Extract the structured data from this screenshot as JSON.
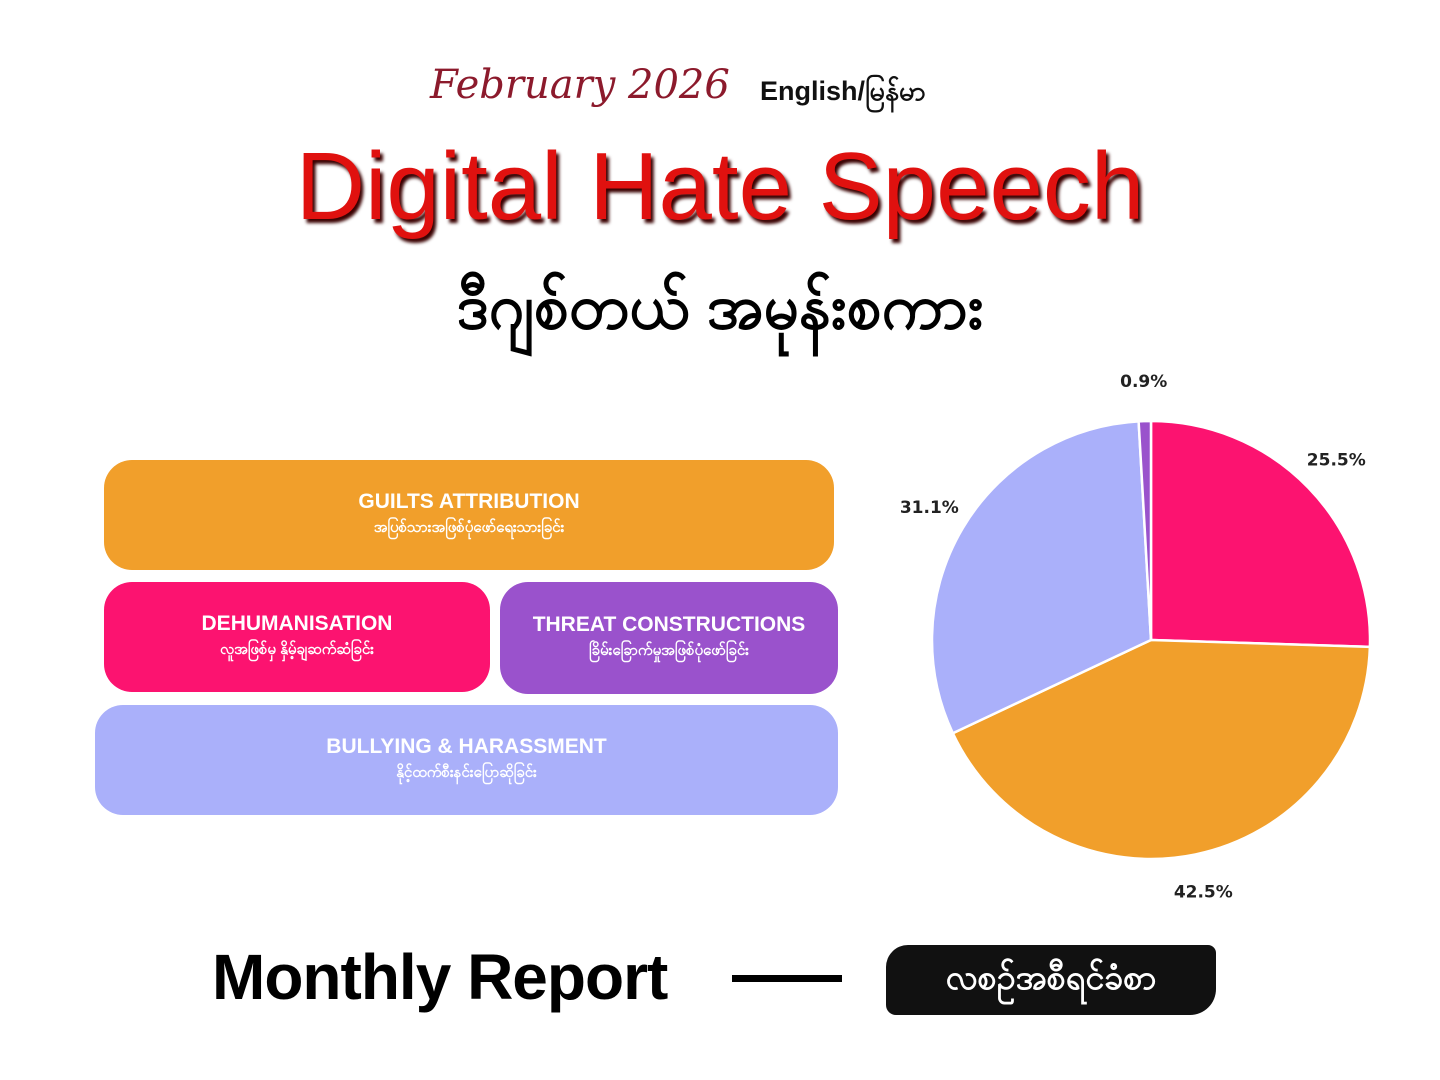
{
  "header": {
    "date": "February 2026",
    "language": "English/မြန်မာ",
    "title": "Digital Hate Speech",
    "subtitle": "ဒီဂျစ်တယ် အမုန်းစကား"
  },
  "chart_data": {
    "type": "pie",
    "categories": [
      "DEHUMANISATION",
      "GUILTS ATTRIBUTION",
      "BULLYING & HARASSMENT",
      "THREAT CONSTRUCTIONS"
    ],
    "category_subtitles": [
      "လူအဖြစ်မှ နှိမ့်ချဆက်ဆံခြင်း",
      "အပြစ်သားအဖြစ်ပုံဖော်ရေးသားခြင်း",
      "နိုင့်ထက်စီးနင်းပြောဆိုခြင်း",
      "ခြိမ်းခြောက်မှုအဖြစ်ပုံဖော်ခြင်း"
    ],
    "values": [
      25.5,
      42.5,
      31.1,
      0.9
    ],
    "value_labels": [
      "25.5%",
      "42.5%",
      "31.1%",
      "0.9%"
    ],
    "colors": [
      "#fc1370",
      "#f19f2b",
      "#aab0fa",
      "#9a52cc"
    ]
  },
  "footer": {
    "left": "Monthly Report",
    "right": "လစဉ်အစီရင်ခံစာ"
  }
}
